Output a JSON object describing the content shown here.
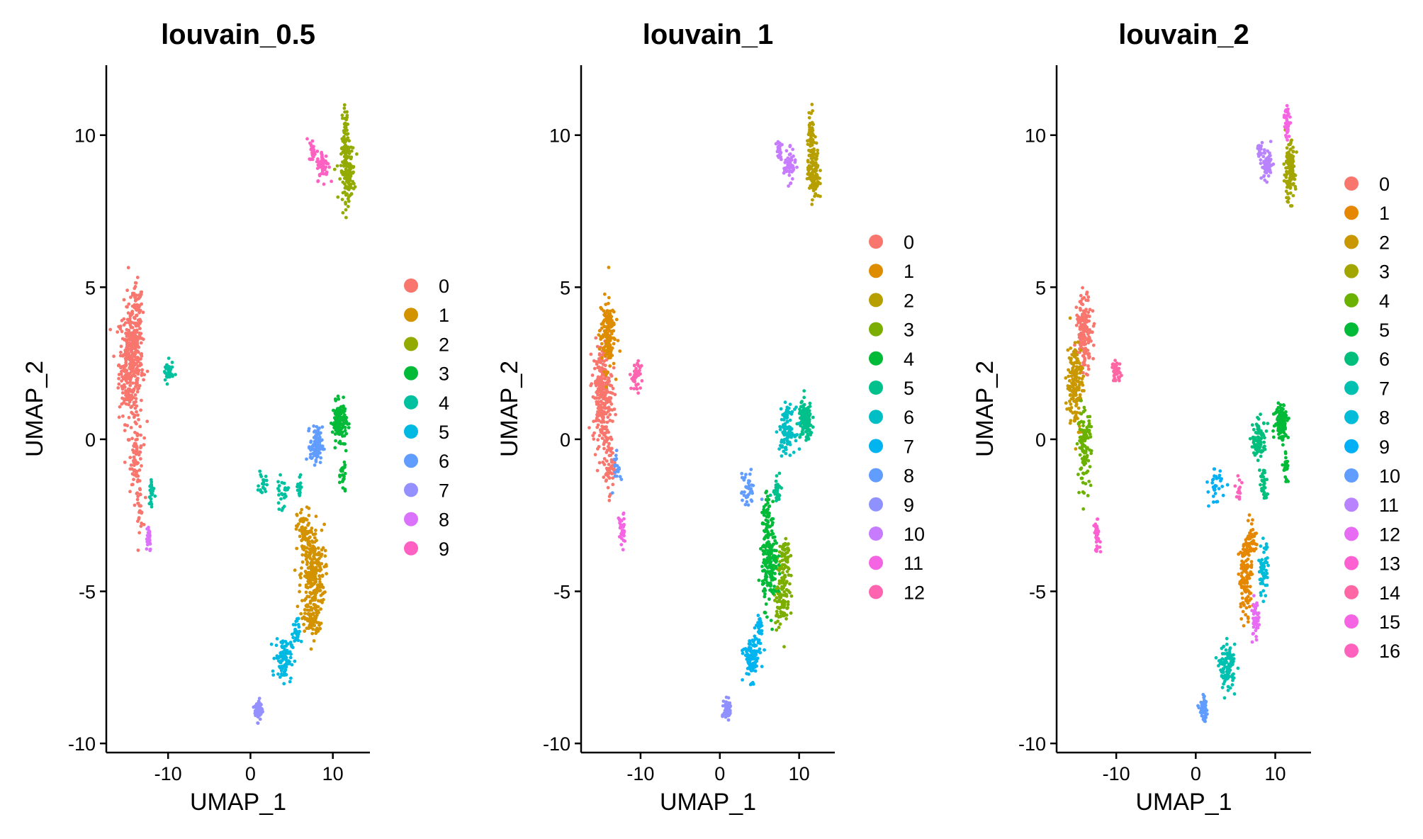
{
  "chart_data": [
    {
      "type": "scatter",
      "title": "louvain_0.5",
      "xlabel": "UMAP_1",
      "ylabel": "UMAP_2",
      "xlim": [
        -17.5,
        14.5
      ],
      "ylim": [
        -10.3,
        12.3
      ],
      "xticks": [
        -10,
        0,
        10
      ],
      "yticks": [
        -10,
        -5,
        0,
        5,
        10
      ],
      "xtick_labels": [
        "-10",
        "0",
        "10"
      ],
      "ytick_labels": [
        "-10",
        "-5",
        "0",
        "5",
        "10"
      ],
      "grid": false,
      "legend": "right",
      "clusters": [
        {
          "label": "0",
          "color": "#F8766D"
        },
        {
          "label": "1",
          "color": "#D39200"
        },
        {
          "label": "2",
          "color": "#93AA00"
        },
        {
          "label": "3",
          "color": "#00BA38"
        },
        {
          "label": "4",
          "color": "#00C19F"
        },
        {
          "label": "5",
          "color": "#00B9E3"
        },
        {
          "label": "6",
          "color": "#619CFF"
        },
        {
          "label": "7",
          "color": "#9590FF"
        },
        {
          "label": "8",
          "color": "#DB72FB"
        },
        {
          "label": "9",
          "color": "#FF61C3"
        }
      ],
      "groups": [
        {
          "cluster": 0,
          "points": [
            [
              -14.5,
              2.5,
              1.2,
              1.6,
              380
            ],
            [
              -13.8,
              4.0,
              0.6,
              0.9,
              60
            ],
            [
              -13.8,
              -0.5,
              0.6,
              0.8,
              70
            ],
            [
              -13.5,
              -2.2,
              0.4,
              0.6,
              30
            ]
          ]
        },
        {
          "cluster": 1,
          "points": [
            [
              7.5,
              -4.5,
              1.2,
              1.4,
              280
            ],
            [
              6.5,
              -3.0,
              0.7,
              0.6,
              60
            ],
            [
              7.5,
              -6.0,
              0.7,
              0.4,
              50
            ]
          ]
        },
        {
          "cluster": 2,
          "points": [
            [
              11.8,
              8.8,
              0.7,
              0.8,
              150
            ],
            [
              11.5,
              10.2,
              0.3,
              0.6,
              40
            ]
          ]
        },
        {
          "cluster": 3,
          "points": [
            [
              10.8,
              0.6,
              0.7,
              0.5,
              150
            ],
            [
              11.3,
              -1.2,
              0.3,
              0.6,
              25
            ]
          ]
        },
        {
          "cluster": 4,
          "points": [
            [
              -10.0,
              2.2,
              0.5,
              0.3,
              40
            ],
            [
              -12.0,
              -1.8,
              0.3,
              0.6,
              20
            ],
            [
              1.5,
              -1.5,
              0.4,
              0.3,
              20
            ],
            [
              3.8,
              -1.8,
              0.6,
              0.4,
              25
            ],
            [
              6.0,
              -1.5,
              0.4,
              0.4,
              15
            ]
          ]
        },
        {
          "cluster": 5,
          "points": [
            [
              4.0,
              -7.2,
              0.8,
              0.6,
              100
            ],
            [
              5.5,
              -6.4,
              0.4,
              0.4,
              25
            ]
          ]
        },
        {
          "cluster": 6,
          "points": [
            [
              8.0,
              -0.2,
              0.6,
              0.5,
              100
            ]
          ]
        },
        {
          "cluster": 7,
          "points": [
            [
              1.0,
              -8.9,
              0.4,
              0.3,
              60
            ]
          ]
        },
        {
          "cluster": 8,
          "points": [
            [
              -12.4,
              -3.2,
              0.3,
              0.4,
              35
            ]
          ]
        },
        {
          "cluster": 9,
          "points": [
            [
              8.8,
              9.0,
              0.6,
              0.4,
              60
            ],
            [
              7.5,
              9.5,
              0.3,
              0.3,
              25
            ]
          ]
        }
      ]
    },
    {
      "type": "scatter",
      "title": "louvain_1",
      "xlabel": "UMAP_1",
      "ylabel": "UMAP_2",
      "xlim": [
        -17.5,
        14.5
      ],
      "ylim": [
        -10.3,
        12.3
      ],
      "xticks": [
        -10,
        0,
        10
      ],
      "yticks": [
        -10,
        -5,
        0,
        5,
        10
      ],
      "xtick_labels": [
        "-10",
        "0",
        "10"
      ],
      "ytick_labels": [
        "-10",
        "-5",
        "0",
        "5",
        "10"
      ],
      "grid": false,
      "legend": "right",
      "clusters": [
        {
          "label": "0",
          "color": "#F8766D"
        },
        {
          "label": "1",
          "color": "#DE8C00"
        },
        {
          "label": "2",
          "color": "#B79F00"
        },
        {
          "label": "3",
          "color": "#7CAE00"
        },
        {
          "label": "4",
          "color": "#00BA38"
        },
        {
          "label": "5",
          "color": "#00C08B"
        },
        {
          "label": "6",
          "color": "#00BFC4"
        },
        {
          "label": "7",
          "color": "#00B4F0"
        },
        {
          "label": "8",
          "color": "#619CFF"
        },
        {
          "label": "9",
          "color": "#8F91FF"
        },
        {
          "label": "10",
          "color": "#C77CFF"
        },
        {
          "label": "11",
          "color": "#F564E3"
        },
        {
          "label": "12",
          "color": "#FF64B0"
        }
      ],
      "groups": [
        {
          "cluster": 0,
          "points": [
            [
              -14.8,
              1.5,
              1.0,
              1.4,
              260
            ],
            [
              -14.0,
              -0.8,
              0.6,
              0.8,
              60
            ]
          ]
        },
        {
          "cluster": 1,
          "points": [
            [
              -14.2,
              3.5,
              0.8,
              1.0,
              150
            ]
          ]
        },
        {
          "cluster": 2,
          "points": [
            [
              11.8,
              8.8,
              0.6,
              0.8,
              130
            ],
            [
              11.5,
              10.2,
              0.3,
              0.6,
              40
            ]
          ]
        },
        {
          "cluster": 3,
          "points": [
            [
              7.8,
              -5.0,
              0.8,
              1.0,
              120
            ],
            [
              8.2,
              -3.8,
              0.5,
              0.6,
              40
            ]
          ]
        },
        {
          "cluster": 4,
          "points": [
            [
              6.3,
              -4.0,
              0.8,
              1.2,
              180
            ],
            [
              6.0,
              -2.5,
              0.5,
              0.5,
              40
            ]
          ]
        },
        {
          "cluster": 5,
          "points": [
            [
              10.8,
              0.6,
              0.7,
              0.5,
              140
            ],
            [
              7.2,
              -1.5,
              0.5,
              0.5,
              30
            ]
          ]
        },
        {
          "cluster": 6,
          "points": [
            [
              8.5,
              0.3,
              0.8,
              0.6,
              110
            ]
          ]
        },
        {
          "cluster": 7,
          "points": [
            [
              4.0,
              -7.2,
              0.8,
              0.6,
              110
            ],
            [
              5.0,
              -6.2,
              0.4,
              0.4,
              25
            ]
          ]
        },
        {
          "cluster": 8,
          "points": [
            [
              3.5,
              -1.7,
              0.7,
              0.5,
              40
            ],
            [
              -13.0,
              -0.8,
              0.4,
              0.6,
              20
            ]
          ]
        },
        {
          "cluster": 9,
          "points": [
            [
              1.0,
              -8.9,
              0.4,
              0.3,
              60
            ]
          ]
        },
        {
          "cluster": 10,
          "points": [
            [
              8.8,
              9.0,
              0.6,
              0.4,
              60
            ],
            [
              7.5,
              9.5,
              0.3,
              0.3,
              25
            ]
          ]
        },
        {
          "cluster": 11,
          "points": [
            [
              -12.4,
              -3.0,
              0.3,
              0.5,
              40
            ]
          ]
        },
        {
          "cluster": 12,
          "points": [
            [
              -10.5,
              2.1,
              0.6,
              0.4,
              45
            ]
          ]
        }
      ]
    },
    {
      "type": "scatter",
      "title": "louvain_2",
      "xlabel": "UMAP_1",
      "ylabel": "UMAP_2",
      "xlim": [
        -17.5,
        14.5
      ],
      "ylim": [
        -10.3,
        12.3
      ],
      "xticks": [
        -10,
        0,
        10
      ],
      "yticks": [
        -10,
        -5,
        0,
        5,
        10
      ],
      "xtick_labels": [
        "-10",
        "0",
        "10"
      ],
      "ytick_labels": [
        "-10",
        "-5",
        "0",
        "5",
        "10"
      ],
      "grid": false,
      "legend": "right",
      "clusters": [
        {
          "label": "0",
          "color": "#F8766D"
        },
        {
          "label": "1",
          "color": "#E58700"
        },
        {
          "label": "2",
          "color": "#C99800"
        },
        {
          "label": "3",
          "color": "#A3A500"
        },
        {
          "label": "4",
          "color": "#6BB100"
        },
        {
          "label": "5",
          "color": "#00BA38"
        },
        {
          "label": "6",
          "color": "#00BF7D"
        },
        {
          "label": "7",
          "color": "#00C0AF"
        },
        {
          "label": "8",
          "color": "#00BCD8"
        },
        {
          "label": "9",
          "color": "#00B0F6"
        },
        {
          "label": "10",
          "color": "#619CFF"
        },
        {
          "label": "11",
          "color": "#B983FF"
        },
        {
          "label": "12",
          "color": "#E76BF3"
        },
        {
          "label": "13",
          "color": "#FD61D1"
        },
        {
          "label": "14",
          "color": "#FF67A4"
        },
        {
          "label": "15",
          "color": "#F564E3"
        },
        {
          "label": "16",
          "color": "#FF62BC"
        }
      ],
      "groups": [
        {
          "cluster": 0,
          "points": [
            [
              -14.0,
              3.5,
              0.8,
              1.0,
              150
            ]
          ]
        },
        {
          "cluster": 1,
          "points": [
            [
              6.3,
              -4.5,
              0.7,
              1.0,
              130
            ],
            [
              7.0,
              -3.2,
              0.5,
              0.5,
              40
            ]
          ]
        },
        {
          "cluster": 2,
          "points": [
            [
              -15.2,
              1.8,
              0.8,
              1.2,
              170
            ]
          ]
        },
        {
          "cluster": 3,
          "points": [
            [
              11.8,
              8.8,
              0.6,
              0.8,
              120
            ]
          ]
        },
        {
          "cluster": 4,
          "points": [
            [
              -14.0,
              -0.3,
              0.7,
              1.0,
              110
            ]
          ]
        },
        {
          "cluster": 5,
          "points": [
            [
              10.8,
              0.6,
              0.7,
              0.5,
              120
            ],
            [
              11.3,
              -0.8,
              0.3,
              0.6,
              25
            ]
          ]
        },
        {
          "cluster": 6,
          "points": [
            [
              8.0,
              0.0,
              0.7,
              0.5,
              100
            ],
            [
              8.5,
              -1.5,
              0.4,
              0.5,
              30
            ]
          ]
        },
        {
          "cluster": 7,
          "points": [
            [
              4.0,
              -7.5,
              0.8,
              0.6,
              110
            ]
          ]
        },
        {
          "cluster": 8,
          "points": [
            [
              8.5,
              -4.3,
              0.5,
              0.7,
              60
            ]
          ]
        },
        {
          "cluster": 9,
          "points": [
            [
              2.5,
              -1.6,
              0.7,
              0.5,
              35
            ]
          ]
        },
        {
          "cluster": 10,
          "points": [
            [
              1.0,
              -8.9,
              0.4,
              0.3,
              60
            ]
          ]
        },
        {
          "cluster": 11,
          "points": [
            [
              9.0,
              9.0,
              0.6,
              0.4,
              70
            ],
            [
              8.0,
              9.5,
              0.3,
              0.3,
              25
            ]
          ]
        },
        {
          "cluster": 12,
          "points": [
            [
              7.5,
              -6.0,
              0.4,
              0.6,
              40
            ]
          ]
        },
        {
          "cluster": 13,
          "points": [
            [
              -12.4,
              -3.2,
              0.3,
              0.4,
              35
            ]
          ]
        },
        {
          "cluster": 14,
          "points": [
            [
              -10.0,
              2.2,
              0.5,
              0.3,
              45
            ]
          ]
        },
        {
          "cluster": 15,
          "points": [
            [
              11.5,
              10.5,
              0.3,
              0.5,
              35
            ]
          ]
        },
        {
          "cluster": 16,
          "points": [
            [
              5.5,
              -1.6,
              0.3,
              0.4,
              15
            ]
          ]
        }
      ]
    }
  ]
}
